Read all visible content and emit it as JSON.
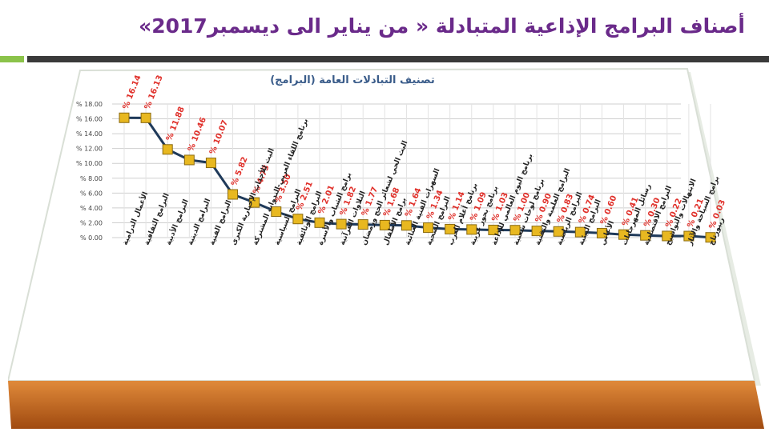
{
  "slide_title": "أصناف البرامج الإذاعية  المتبادلة « من يناير الى ديسمبر2017»",
  "chart_data": {
    "type": "line",
    "title": "تصنيف التبادلات العامة (البرامج)",
    "ylim": [
      0,
      18
    ],
    "yticks": [
      "% 0.00",
      "% 2.00",
      "% 4.00",
      "% 6.00",
      "% 8.00",
      "% 10.00",
      "% 12.00",
      "% 14.00",
      "% 16.00",
      "% 18.00"
    ],
    "categories": [
      "الأعمال الدرامية",
      "البرامج الثقافية",
      "البرامج الأدبية",
      "البرامج الدينية",
      "البرامج الفنية",
      "البث للأحداث الإخبارية الكبرى",
      "برنامج اللقاء العربي-الندوات المشتركة",
      "البرامج السياسية",
      "البرامج الوثائقية",
      "برامج الشباب والأسرة",
      "التلاوات القرآنية",
      "البث الحي لشعائر الحج ورمضان",
      "برامج الأطفال",
      "السهرات الفنية الغنائية",
      "البرامج الصحية",
      "برنامج أعلام العرب",
      "برنامج بحور عربية",
      "برنامج اليوم العالمي للإذاعة",
      "برنامج لوحات شعبية",
      "البرامج العلمية والتقنية",
      "البرامج الرياضية",
      "البرامج البيئية",
      "الأغاني",
      "رسائل المهرجانات",
      "البرامج الاقتصادية",
      "الابتهالات والتواشيح",
      "برامج السياحة والآثار",
      "ريبورتاج"
    ],
    "values": [
      16.14,
      16.13,
      11.88,
      10.46,
      10.07,
      5.82,
      4.73,
      3.5,
      2.51,
      2.01,
      1.82,
      1.77,
      1.68,
      1.64,
      1.34,
      1.14,
      1.09,
      1.03,
      1.0,
      0.9,
      0.83,
      0.74,
      0.6,
      0.41,
      0.3,
      0.22,
      0.21,
      0.03
    ],
    "data_labels": [
      "% 16.14",
      "% 16.13",
      "% 11.88",
      "% 10.46",
      "% 10.07",
      "% 5.82",
      "% 4.73",
      "% 3.50",
      "% 2.51",
      "% 2.01",
      "% 1.82",
      "% 1.77",
      "% 1.68",
      "% 1.64",
      "% 1.34",
      "% 1.14",
      "% 1.09",
      "% 1.03",
      "% 1.00",
      "% 0.90",
      "% 0.83",
      "% 0.74",
      "% 0.60",
      "% 0.41",
      "% 0.30",
      "% 0.22",
      "% 0.21",
      "% 0.03"
    ],
    "grid": true,
    "colors": {
      "line": "#1f3a5a",
      "marker": "#e8b820",
      "marker_edge": "#8a6a10",
      "label": "#e0302a",
      "title": "#3a5c8a",
      "base": "#c86a1a"
    }
  }
}
